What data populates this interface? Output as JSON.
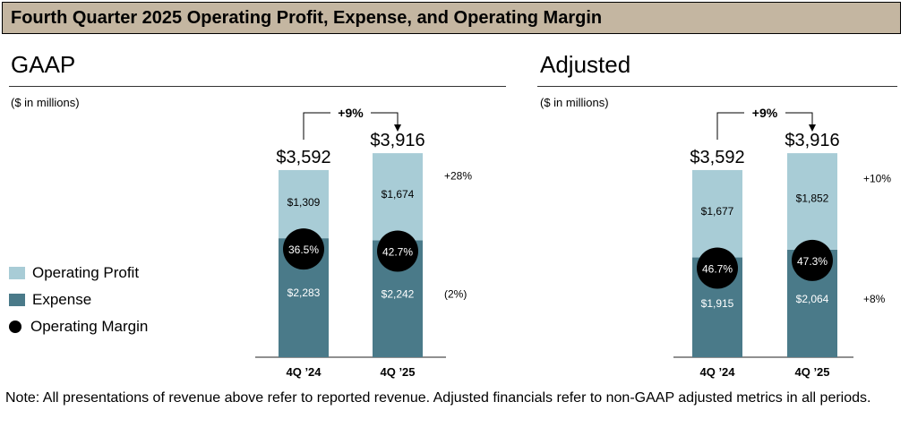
{
  "title": "Fourth Quarter 2025 Operating Profit, Expense, and Operating Margin",
  "units": "($ in millions)",
  "note": "Note: All presentations of revenue above refer to reported revenue. Adjusted financials refer to non-GAAP adjusted metrics in all periods.",
  "legend": {
    "profit": "Operating Profit",
    "expense": "Expense",
    "margin": "Operating Margin"
  },
  "colors": {
    "profit": "#a8ccd6",
    "expense": "#4a7a89",
    "title_bg": "#c4b6a1",
    "margin": "#000000"
  },
  "chart_data": [
    {
      "type": "bar",
      "stacked": true,
      "title": "GAAP",
      "units": "($ in millions)",
      "categories": [
        "4Q ’24",
        "4Q ’25"
      ],
      "totals": [
        3592,
        3916
      ],
      "total_labels": [
        "$3,592",
        "$3,916"
      ],
      "series": [
        {
          "name": "Expense",
          "values": [
            2283,
            2242
          ],
          "labels": [
            "$2,283",
            "$2,242"
          ],
          "change": "(2%)"
        },
        {
          "name": "Operating Profit",
          "values": [
            1309,
            1674
          ],
          "labels": [
            "$1,309",
            "$1,674"
          ],
          "change": "+28%"
        }
      ],
      "margin": {
        "name": "Operating Margin",
        "values": [
          36.5,
          42.7
        ],
        "labels": [
          "36.5%",
          "42.7%"
        ]
      },
      "growth_label": "+9%",
      "ylim": [
        0,
        4500
      ]
    },
    {
      "type": "bar",
      "stacked": true,
      "title": "Adjusted",
      "units": "($ in millions)",
      "categories": [
        "4Q ’24",
        "4Q ’25"
      ],
      "totals": [
        3592,
        3916
      ],
      "total_labels": [
        "$3,592",
        "$3,916"
      ],
      "series": [
        {
          "name": "Expense",
          "values": [
            1915,
            2064
          ],
          "labels": [
            "$1,915",
            "$2,064"
          ],
          "change": "+8%"
        },
        {
          "name": "Operating Profit",
          "values": [
            1677,
            1852
          ],
          "labels": [
            "$1,677",
            "$1,852"
          ],
          "change": "+10%"
        }
      ],
      "margin": {
        "name": "Operating Margin",
        "values": [
          46.7,
          47.3
        ],
        "labels": [
          "46.7%",
          "47.3%"
        ]
      },
      "growth_label": "+9%",
      "ylim": [
        0,
        4500
      ]
    }
  ]
}
